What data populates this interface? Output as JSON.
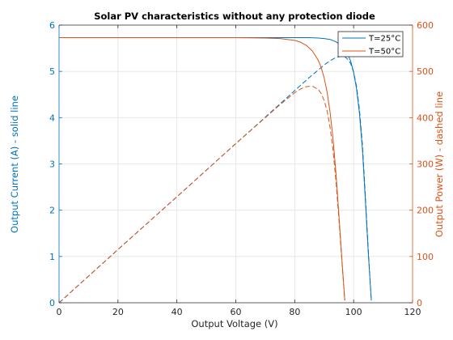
{
  "chart_data": {
    "type": "line",
    "title": "Solar PV characteristics without any protection diode",
    "xlabel": "Output Voltage (V)",
    "ylabel_left": "Output Current (A) - solid line",
    "ylabel_right": "Output Power (W) - dashed line",
    "xlim": [
      0,
      120
    ],
    "ylim_left": [
      0,
      6
    ],
    "ylim_right": [
      0,
      600
    ],
    "x_ticks": [
      "0",
      "20",
      "40",
      "60",
      "80",
      "100",
      "120"
    ],
    "y_left_ticks": [
      "0",
      "1",
      "2",
      "3",
      "4",
      "5",
      "6"
    ],
    "y_right_ticks": [
      "0",
      "100",
      "200",
      "300",
      "400",
      "500",
      "600"
    ],
    "grid": true,
    "legend_position": "top-right",
    "legend": [
      "T=25°C",
      "T=50°C"
    ],
    "colors": {
      "series_25": "#0072bd",
      "series_50": "#d95319",
      "left_axis": "#0072bd",
      "right_axis": "#d95319"
    },
    "series": [
      {
        "name": "T=25°C",
        "axis": "left",
        "style": "solid",
        "x": [
          0,
          20,
          40,
          60,
          70,
          78,
          82,
          85,
          88,
          90,
          92,
          94,
          96,
          97,
          98,
          99,
          100,
          101,
          102,
          103,
          104,
          105,
          106
        ],
        "values": [
          5.73,
          5.73,
          5.73,
          5.73,
          5.73,
          5.73,
          5.73,
          5.73,
          5.72,
          5.71,
          5.69,
          5.64,
          5.55,
          5.48,
          5.37,
          5.22,
          4.98,
          4.62,
          4.08,
          3.3,
          2.2,
          1.05,
          0.05
        ]
      },
      {
        "name": "T=25°C",
        "axis": "right",
        "style": "dashed",
        "x": [
          0,
          20,
          40,
          60,
          70,
          78,
          82,
          85,
          88,
          90,
          92,
          94,
          96,
          97,
          98,
          99,
          100,
          101,
          102,
          103,
          104,
          105,
          106
        ],
        "values": [
          0,
          115,
          229,
          344,
          401,
          447,
          470,
          487,
          503,
          514,
          523,
          530,
          533,
          532,
          526,
          517,
          498,
          467,
          416,
          340,
          229,
          110,
          5
        ]
      },
      {
        "name": "T=50°C",
        "axis": "left",
        "style": "solid",
        "x": [
          0,
          20,
          40,
          60,
          70,
          75,
          80,
          82,
          84,
          86,
          88,
          89,
          90,
          91,
          92,
          93,
          94,
          95,
          96,
          97
        ],
        "values": [
          5.73,
          5.73,
          5.73,
          5.73,
          5.72,
          5.71,
          5.67,
          5.63,
          5.56,
          5.44,
          5.24,
          5.08,
          4.86,
          4.55,
          4.12,
          3.55,
          2.8,
          1.9,
          0.95,
          0.05
        ]
      },
      {
        "name": "T=50°C",
        "axis": "right",
        "style": "dashed",
        "x": [
          0,
          20,
          40,
          60,
          70,
          75,
          80,
          82,
          84,
          86,
          88,
          89,
          90,
          91,
          92,
          93,
          94,
          95,
          96,
          97
        ],
        "values": [
          0,
          115,
          229,
          344,
          400,
          428,
          454,
          462,
          467,
          468,
          461,
          452,
          437,
          414,
          379,
          330,
          263,
          181,
          91,
          5
        ]
      }
    ]
  }
}
